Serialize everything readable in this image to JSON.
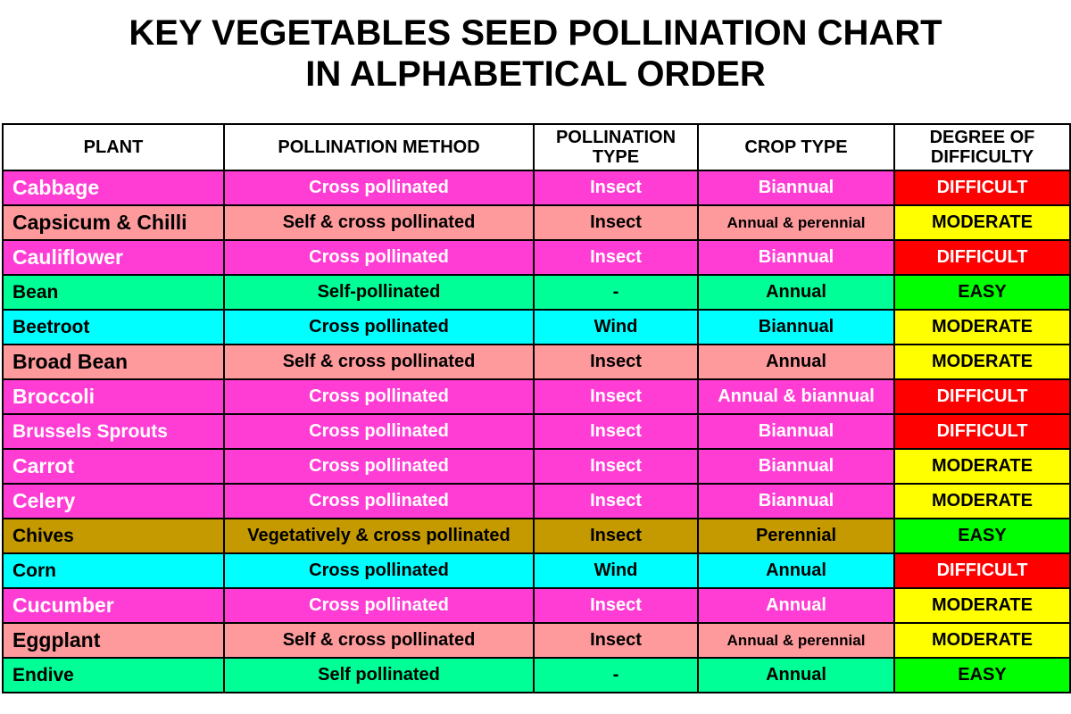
{
  "title": {
    "line1": "KEY VEGETABLES SEED POLLINATION CHART",
    "line2": "IN ALPHABETICAL ORDER"
  },
  "columns": {
    "plant": "PLANT",
    "method": "POLLINATION METHOD",
    "type": "POLLINATION TYPE",
    "crop": "CROP TYPE",
    "difficulty": "DEGREE OF DIFFICULTY"
  },
  "colors": {
    "magenta": "#ff3dd5",
    "salmon": "#ff9a9c",
    "green": "#00ff96",
    "cyan": "#00ffff",
    "olive": "#c49a00",
    "difficult": "#ff0000",
    "moderate": "#ffff00",
    "easy": "#00ff00"
  },
  "rows": [
    {
      "plant": "Cabbage",
      "method": "Cross pollinated",
      "type": "Insect",
      "crop": "Biannual",
      "difficulty": "DIFFICULT",
      "row_color": "magenta"
    },
    {
      "plant": "Capsicum & Chilli",
      "method": "Self & cross pollinated",
      "type": "Insect",
      "crop": "Annual & perennial",
      "difficulty": "MODERATE",
      "row_color": "salmon"
    },
    {
      "plant": "Cauliflower",
      "method": "Cross pollinated",
      "type": "Insect",
      "crop": "Biannual",
      "difficulty": "DIFFICULT",
      "row_color": "magenta"
    },
    {
      "plant": "Bean",
      "method": "Self-pollinated",
      "type": "-",
      "crop": "Annual",
      "difficulty": "EASY",
      "row_color": "green"
    },
    {
      "plant": "Beetroot",
      "method": "Cross pollinated",
      "type": "Wind",
      "crop": "Biannual",
      "difficulty": "MODERATE",
      "row_color": "cyan"
    },
    {
      "plant": "Broad Bean",
      "method": "Self & cross pollinated",
      "type": "Insect",
      "crop": "Annual",
      "difficulty": "MODERATE",
      "row_color": "salmon"
    },
    {
      "plant": "Broccoli",
      "method": "Cross pollinated",
      "type": "Insect",
      "crop": "Annual & biannual",
      "difficulty": "DIFFICULT",
      "row_color": "magenta"
    },
    {
      "plant": "Brussels Sprouts",
      "method": "Cross pollinated",
      "type": "Insect",
      "crop": "Biannual",
      "difficulty": "DIFFICULT",
      "row_color": "magenta"
    },
    {
      "plant": "Carrot",
      "method": "Cross pollinated",
      "type": "Insect",
      "crop": "Biannual",
      "difficulty": "MODERATE",
      "row_color": "magenta"
    },
    {
      "plant": "Celery",
      "method": "Cross pollinated",
      "type": "Insect",
      "crop": "Biannual",
      "difficulty": "MODERATE",
      "row_color": "magenta"
    },
    {
      "plant": "Chives",
      "method": "Vegetatively & cross pollinated",
      "type": "Insect",
      "crop": "Perennial",
      "difficulty": "EASY",
      "row_color": "olive"
    },
    {
      "plant": "Corn",
      "method": "Cross pollinated",
      "type": "Wind",
      "crop": "Annual",
      "difficulty": "DIFFICULT",
      "row_color": "cyan"
    },
    {
      "plant": "Cucumber",
      "method": "Cross pollinated",
      "type": "Insect",
      "crop": "Annual",
      "difficulty": "MODERATE",
      "row_color": "magenta"
    },
    {
      "plant": "Eggplant",
      "method": "Self & cross pollinated",
      "type": "Insect",
      "crop": "Annual & perennial",
      "difficulty": "MODERATE",
      "row_color": "salmon"
    },
    {
      "plant": "Endive",
      "method": "Self pollinated",
      "type": "-",
      "crop": "Annual",
      "difficulty": "EASY",
      "row_color": "green"
    }
  ]
}
